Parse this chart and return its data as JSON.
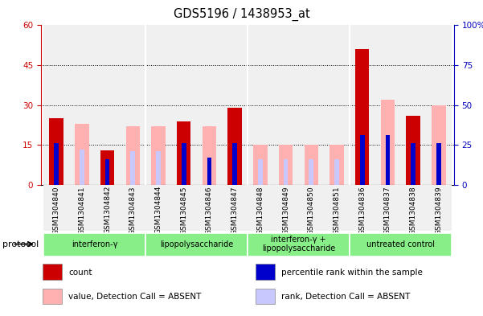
{
  "title": "GDS5196 / 1438953_at",
  "samples": [
    "GSM1304840",
    "GSM1304841",
    "GSM1304842",
    "GSM1304843",
    "GSM1304844",
    "GSM1304845",
    "GSM1304846",
    "GSM1304847",
    "GSM1304848",
    "GSM1304849",
    "GSM1304850",
    "GSM1304851",
    "GSM1304836",
    "GSM1304837",
    "GSM1304838",
    "GSM1304839"
  ],
  "count": [
    25,
    0,
    13,
    0,
    0,
    24,
    0,
    29,
    0,
    0,
    0,
    0,
    51,
    0,
    26,
    0
  ],
  "percentile_rank": [
    26,
    0,
    16,
    0,
    0,
    26,
    17,
    26,
    0,
    0,
    0,
    0,
    31,
    31,
    26,
    26
  ],
  "value_absent": [
    0,
    23,
    0,
    22,
    22,
    0,
    22,
    0,
    15,
    15,
    15,
    15,
    0,
    32,
    0,
    30
  ],
  "rank_absent": [
    0,
    22,
    0,
    21,
    21,
    0,
    16,
    0,
    16,
    16,
    16,
    16,
    0,
    22,
    0,
    22
  ],
  "groups": [
    {
      "label": "interferon-γ",
      "start": 0,
      "end": 4
    },
    {
      "label": "lipopolysaccharide",
      "start": 4,
      "end": 8
    },
    {
      "label": "interferon-γ +\nlipopolysaccharide",
      "start": 8,
      "end": 12
    },
    {
      "label": "untreated control",
      "start": 12,
      "end": 16
    }
  ],
  "left_ylim": [
    0,
    60
  ],
  "right_ylim": [
    0,
    100
  ],
  "left_yticks": [
    0,
    15,
    30,
    45,
    60
  ],
  "right_yticks": [
    0,
    25,
    50,
    75,
    100
  ],
  "left_color": "#cc0000",
  "right_color": "#0000bb",
  "bar_color_count": "#cc0000",
  "bar_color_rank": "#0000cc",
  "bar_color_value_absent": "#ffb0b0",
  "bar_color_rank_absent": "#c8c8ff",
  "group_color": "#88ee88",
  "bg_color": "#f0f0f0",
  "legend_items": [
    [
      "#cc0000",
      "count"
    ],
    [
      "#0000cc",
      "percentile rank within the sample"
    ],
    [
      "#ffb0b0",
      "value, Detection Call = ABSENT"
    ],
    [
      "#c8c8ff",
      "rank, Detection Call = ABSENT"
    ]
  ]
}
